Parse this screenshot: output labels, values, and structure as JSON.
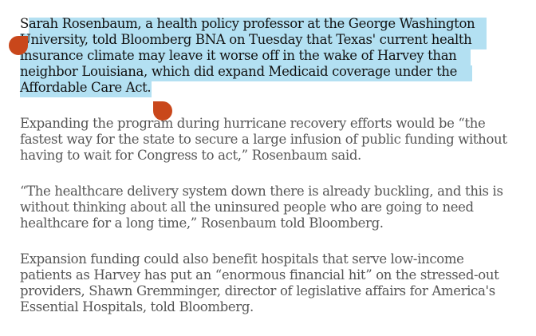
{
  "article": {
    "paragraphs": [
      "Sarah Rosenbaum, a health policy professor at the George Washington\nUniversity, told Bloomberg BNA on Tuesday that Texas' current health\ninsurance climate may leave it worse off in the wake of Harvey than\nneighbor Louisiana, which did expand Medicaid coverage under the\nAffordable Care Act.",
      "Expanding the program during hurricane recovery efforts would be “the\nfastest way for the state to secure a large infusion of public funding without\nhaving to wait for Congress to act,” Rosenbaum said.",
      "“The healthcare delivery system down there is already buckling, and this is\nwithout thinking about all the uninsured people who are going to need\nhealthcare for a long time,” Rosenbaum told Bloomberg.",
      "Expansion funding could also benefit hospitals that serve low-income\npatients as Harvey has put an “enormous financial hit” on the stressed-out\nproviders, Shawn Gremminger, director of legislative affairs for America's\nEssential Hospitals, told Bloomberg."
    ]
  },
  "selection": {
    "color": "#b3e0f2",
    "handle_color": "#c9471b"
  }
}
